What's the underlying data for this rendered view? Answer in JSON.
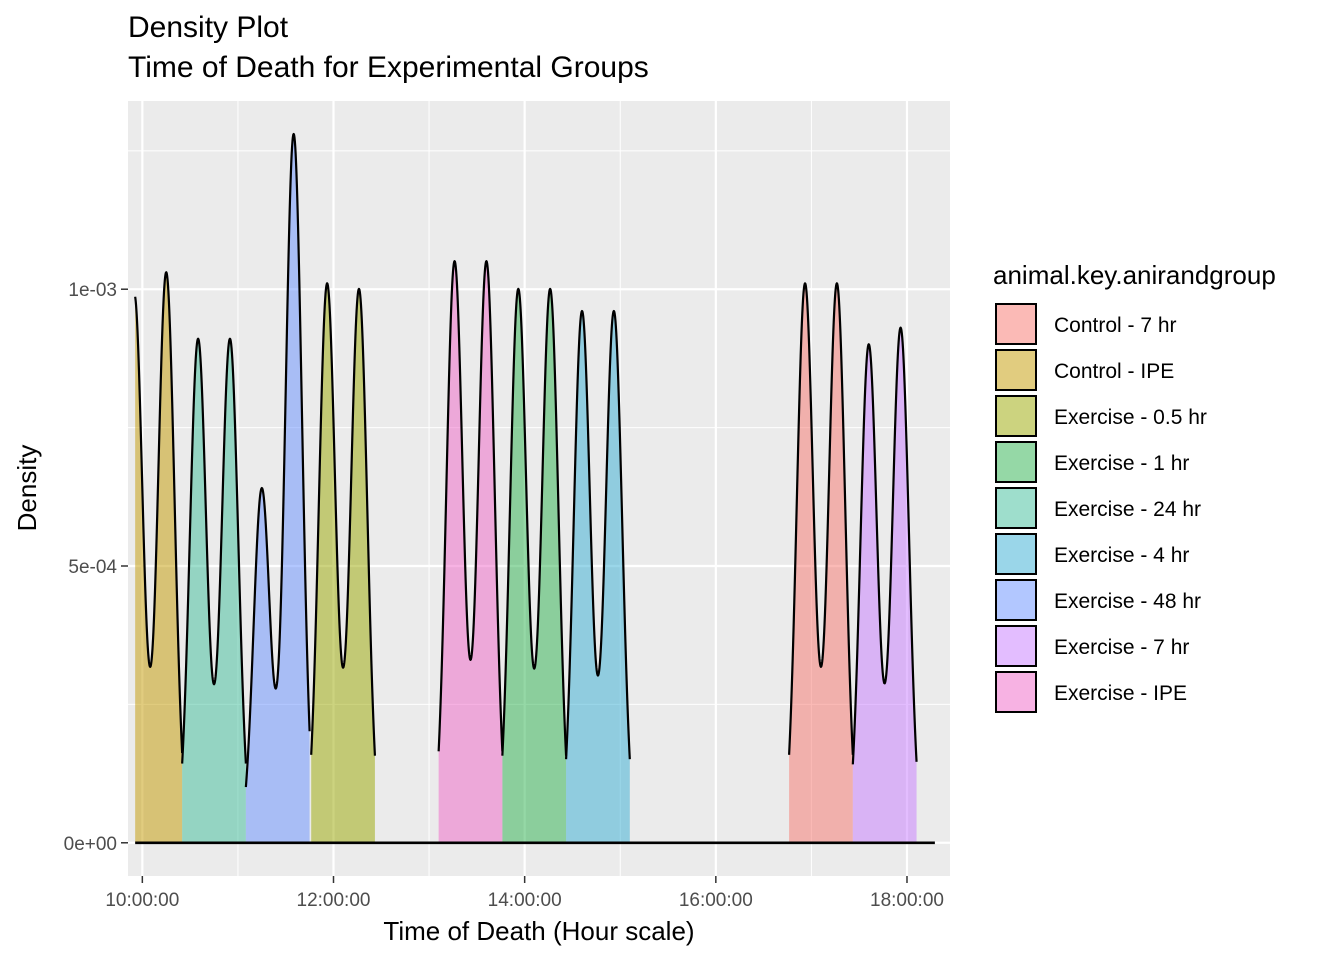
{
  "chart_data": {
    "type": "area",
    "title": "Density Plot",
    "subtitle": "Time of Death for Experimental Groups",
    "xlabel": "Time of Death (Hour scale)",
    "ylabel": "Density",
    "xlim": [
      "09:51:00",
      "18:27:00"
    ],
    "ylim": [
      -6e-05,
      0.00134
    ],
    "x_ticks": [
      "10:00:00",
      "12:00:00",
      "14:00:00",
      "16:00:00",
      "18:00:00"
    ],
    "y_ticks": [
      "0e+00",
      "5e-04",
      "1e-03"
    ],
    "y_tick_values": [
      0,
      0.0005,
      0.001
    ],
    "grid": true,
    "legend_position": "right",
    "legend_title": "animal.key.anirandgroup",
    "fill_alpha": 0.5,
    "series": [
      {
        "name": "Control - 7 hr",
        "color": "#F8766D",
        "peaks": [
          {
            "time": "16:56:00",
            "density": 0.00101
          },
          {
            "time": "17:16:00",
            "density": 0.00101
          }
        ]
      },
      {
        "name": "Control - IPE",
        "color": "#C49A00",
        "peaks": [
          {
            "time": "09:55:00",
            "density": 0.00099
          },
          {
            "time": "10:15:00",
            "density": 0.00103
          }
        ]
      },
      {
        "name": "Exercise - 0.5 hr",
        "color": "#99A800",
        "peaks": [
          {
            "time": "11:56:00",
            "density": 0.00101
          },
          {
            "time": "12:16:00",
            "density": 0.001
          }
        ]
      },
      {
        "name": "Exercise - 1 hr",
        "color": "#2BB14E",
        "peaks": [
          {
            "time": "13:56:00",
            "density": 0.001
          },
          {
            "time": "14:16:00",
            "density": 0.001
          }
        ]
      },
      {
        "name": "Exercise - 24 hr",
        "color": "#3EBD9A",
        "peaks": [
          {
            "time": "10:35:00",
            "density": 0.00091
          },
          {
            "time": "10:55:00",
            "density": 0.00091
          }
        ]
      },
      {
        "name": "Exercise - 4 hr",
        "color": "#35AED4",
        "peaks": [
          {
            "time": "14:36:00",
            "density": 0.00096
          },
          {
            "time": "14:56:00",
            "density": 0.00096
          }
        ]
      },
      {
        "name": "Exercise - 48 hr",
        "color": "#6590FF",
        "peaks": [
          {
            "time": "11:15:00",
            "density": 0.00064
          },
          {
            "time": "11:35:00",
            "density": 0.00128
          }
        ]
      },
      {
        "name": "Exercise - 7 hr",
        "color": "#C77CFF",
        "peaks": [
          {
            "time": "17:36:00",
            "density": 0.0009
          },
          {
            "time": "17:56:00",
            "density": 0.00093
          }
        ]
      },
      {
        "name": "Exercise - IPE",
        "color": "#F066C8",
        "peaks": [
          {
            "time": "13:16:00",
            "density": 0.00105
          },
          {
            "time": "13:36:00",
            "density": 0.00105
          }
        ]
      }
    ]
  }
}
